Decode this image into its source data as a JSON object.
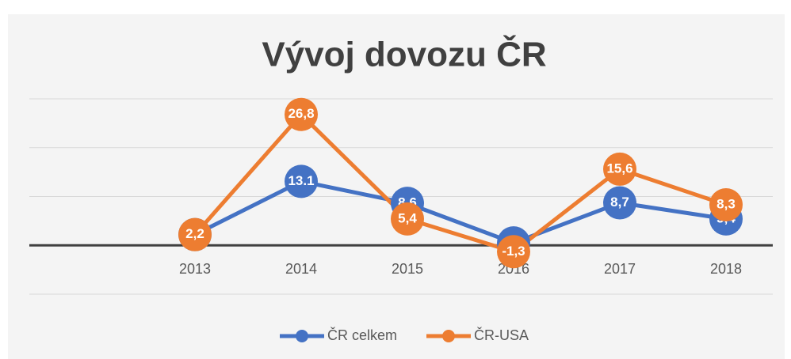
{
  "chart_data": {
    "type": "line",
    "title": "Vývoj dovozu ČR",
    "categories": [
      "2013",
      "2014",
      "2015",
      "2016",
      "2017",
      "2018"
    ],
    "series": [
      {
        "name": "ČR celkem",
        "color": "#4472c4",
        "values": [
          2.2,
          13.1,
          8.6,
          0.5,
          8.7,
          5.4
        ],
        "value_labels": [
          "2,2",
          "13.1",
          "8,6",
          "0,5",
          "8,7",
          "5,4"
        ]
      },
      {
        "name": "ČR-USA",
        "color": "#ed7d31",
        "values": [
          2.2,
          26.8,
          5.4,
          -1.3,
          15.6,
          8.3
        ],
        "value_labels": [
          "2,2",
          "26,8",
          "5,4",
          "-1,3",
          "15,6",
          "8,3"
        ]
      }
    ],
    "ylim": [
      -10,
      30
    ],
    "yticks": [
      -10,
      0,
      10,
      20,
      30
    ],
    "grid": true,
    "legend": "bottom"
  }
}
